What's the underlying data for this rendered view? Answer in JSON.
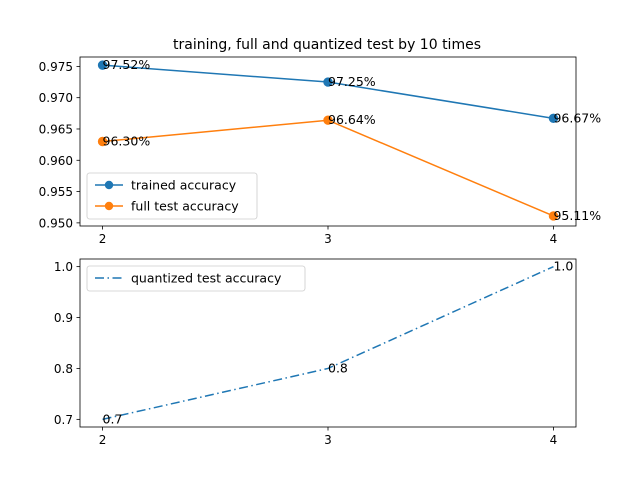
{
  "chart_data": [
    {
      "type": "line",
      "title": "training, full and quantized test by 10 times",
      "xlabel": "",
      "ylabel": "",
      "x": [
        2,
        3,
        4
      ],
      "xticks": [
        "2",
        "3",
        "4"
      ],
      "ylim": [
        0.9495,
        0.9765
      ],
      "yticks": [
        "0.950",
        "0.955",
        "0.960",
        "0.965",
        "0.970",
        "0.975"
      ],
      "yticks_values": [
        0.95,
        0.955,
        0.96,
        0.965,
        0.97,
        0.975
      ],
      "grid": false,
      "legend": "lower-left",
      "series": [
        {
          "name": "trained accuracy",
          "values": [
            0.9752,
            0.9725,
            0.9667
          ],
          "labels": [
            "97.52%",
            "97.25%",
            "96.67%"
          ],
          "color": "#1f77b4",
          "linestyle": "solid",
          "marker": "circle"
        },
        {
          "name": "full test accuracy",
          "values": [
            0.963,
            0.9664,
            0.9511
          ],
          "labels": [
            "96.30%",
            "96.64%",
            "95.11%"
          ],
          "color": "#ff7f0e",
          "linestyle": "solid",
          "marker": "circle"
        }
      ]
    },
    {
      "type": "line",
      "title": "",
      "xlabel": "",
      "ylabel": "",
      "x": [
        2,
        3,
        4
      ],
      "xticks": [
        "2",
        "3",
        "4"
      ],
      "ylim": [
        0.685,
        1.015
      ],
      "yticks": [
        "0.7",
        "0.8",
        "0.9",
        "1.0"
      ],
      "yticks_values": [
        0.7,
        0.8,
        0.9,
        1.0
      ],
      "grid": false,
      "legend": "upper-left",
      "series": [
        {
          "name": "quantized test accuracy",
          "values": [
            0.7,
            0.8,
            1.0
          ],
          "labels": [
            "0.7",
            "0.8",
            "1.0"
          ],
          "color": "#1f77b4",
          "linestyle": "dashdot",
          "marker": "none"
        }
      ]
    }
  ]
}
